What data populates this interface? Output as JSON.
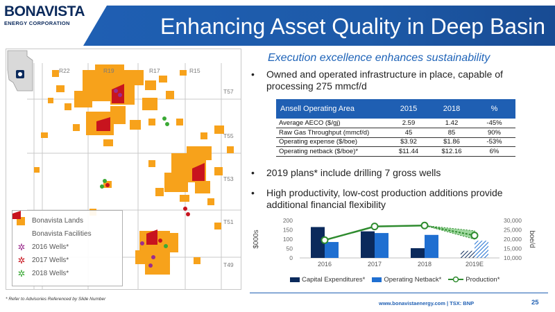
{
  "logo": {
    "name": "BONAVISTA",
    "sub": "ENERGY CORPORATION"
  },
  "title": "Enhancing Asset Quality in Deep Basin",
  "subtitle": "Execution excellence enhances sustainability",
  "bullets": [
    "Owned and operated infrastructure in place, capable of processing 275 mmcf/d",
    "2019 plans* include drilling 7 gross wells",
    "High productivity, low-cost production additions provide additional financial flexibility"
  ],
  "map": {
    "range_labels": [
      "R22",
      "R19",
      "R17",
      "R15"
    ],
    "township_labels": [
      "T57",
      "T55",
      "T53",
      "T51",
      "T49"
    ],
    "legend": [
      {
        "label": "Bonavista Lands",
        "color": "#f7a21b",
        "kind": "square"
      },
      {
        "label": "Bonavista Facilities",
        "color": "#c8141e",
        "kind": "facility"
      },
      {
        "label": "2016 Wells*",
        "color": "#9b2c8e",
        "kind": "star"
      },
      {
        "label": "2017 Wells*",
        "color": "#c8141e",
        "kind": "star"
      },
      {
        "label": "2018 Wells*",
        "color": "#3aa935",
        "kind": "star"
      }
    ]
  },
  "table": {
    "headers": [
      "Ansell Operating Area",
      "2015",
      "2018",
      "%"
    ],
    "rows": [
      [
        "Average AECO ($/gj)",
        "2.59",
        "1.42",
        "-45%"
      ],
      [
        "Raw Gas Throughput (mmcf/d)",
        "45",
        "85",
        "90%"
      ],
      [
        "Operating expense ($/boe)",
        "$3.92",
        "$1.86",
        "-53%"
      ],
      [
        "Operating netback ($/boe)*",
        "$11.44",
        "$12.16",
        "6%"
      ]
    ]
  },
  "chart_data": {
    "type": "bar",
    "categories": [
      "2016",
      "2017",
      "2018",
      "2019E"
    ],
    "series": [
      {
        "name": "Capital Expenditures*",
        "type": "bar",
        "axis": "left",
        "color": "#0b2a5c",
        "values": [
          165,
          142,
          52,
          38
        ]
      },
      {
        "name": "Operating Netback*",
        "type": "bar",
        "axis": "left",
        "color": "#1f6fd1",
        "values": [
          85,
          133,
          123,
          92
        ]
      },
      {
        "name": "Production*",
        "type": "line",
        "axis": "right",
        "color": "#2e8b2e",
        "values": [
          19500,
          26800,
          27300,
          22000
        ]
      }
    ],
    "ylabel": "$000s",
    "ylabel_right": "boe/d",
    "ylim": [
      0,
      200
    ],
    "yticks": [
      "0",
      "50",
      "100",
      "150",
      "200"
    ],
    "ylim_right": [
      10000,
      30000
    ],
    "yticks_right": [
      "10,000",
      "15,000",
      "20,000",
      "25,000",
      "30,000"
    ],
    "projection_range_2019": [
      20000,
      24500
    ],
    "legend_position": "bottom",
    "grid": false
  },
  "footer": {
    "note": "* Refer to Advisories Referenced by Slide Number",
    "site": "www.bonavistaenergy.com  |  TSX: BNP",
    "page": "25"
  }
}
